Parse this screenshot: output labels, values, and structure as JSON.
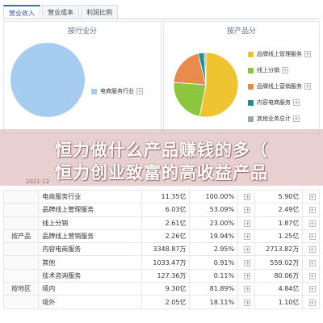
{
  "tabs": [
    {
      "label": "营业收入",
      "active": true
    },
    {
      "label": "营业成本",
      "active": false
    },
    {
      "label": "利润比例",
      "active": false
    }
  ],
  "left_panel": {
    "title": "按行业分",
    "legend": [
      {
        "label": "电商服务行业",
        "color": "#a6cdf0"
      }
    ]
  },
  "right_panel": {
    "title": "按产品分",
    "legend": [
      {
        "label": "品牌线上管理服务",
        "color": "#f0c330"
      },
      {
        "label": "线上分销",
        "color": "#8cc63f"
      },
      {
        "label": "品牌线上营销服务",
        "color": "#e98b4a"
      },
      {
        "label": "内容电商服务",
        "color": "#1e8f8f"
      },
      {
        "label": "其他业务总计",
        "color": "#9aa7b5"
      }
    ]
  },
  "chart_data": [
    {
      "type": "pie",
      "title": "按行业分",
      "labels": [
        "电商服务行业"
      ],
      "values": [
        100
      ],
      "colors": [
        "#a6cdf0"
      ]
    },
    {
      "type": "pie",
      "title": "按产品分",
      "labels": [
        "品牌线上管理服务",
        "线上分销",
        "品牌线上营销服务",
        "内容电商服务",
        "其他业务总计"
      ],
      "values": [
        53.09,
        23.0,
        19.94,
        2.95,
        0.91
      ],
      "colors": [
        "#f0c330",
        "#8cc63f",
        "#e98b4a",
        "#1e8f8f",
        "#9aa7b5"
      ]
    }
  ],
  "banner": {
    "line1": "恒力做什么产品赚钱的多（",
    "line2": "恒力创业致富的高收益产品",
    "date_peek": "2021-12"
  },
  "table": {
    "rows": [
      {
        "group": "",
        "name": "电商服务行业",
        "revenue": "11.35亿",
        "ratio": "100.00%",
        "cost": "5.90亿"
      },
      {
        "group": "",
        "name": "品牌线上管理服务",
        "revenue": "6.03亿",
        "ratio": "53.09%",
        "cost": "2.49亿"
      },
      {
        "group": "",
        "name": "线上分销",
        "revenue": "2.61亿",
        "ratio": "23.00%",
        "cost": "1.87亿"
      },
      {
        "group": "按产品",
        "name": "品牌线上营销服务",
        "revenue": "2.26亿",
        "ratio": "19.94%",
        "cost": "1.25亿"
      },
      {
        "group": "",
        "name": "内容电商服务",
        "revenue": "3348.87万",
        "ratio": "2.95%",
        "cost": "2713.82万"
      },
      {
        "group": "",
        "name": "其他",
        "revenue": "1033.47万",
        "ratio": "0.91%",
        "cost": "559.02万"
      },
      {
        "group": "",
        "name": "技术咨询服务",
        "revenue": "127.36万",
        "ratio": "0.11%",
        "cost": "80.06万"
      },
      {
        "group": "按地区",
        "name": "境内",
        "revenue": "9.30亿",
        "ratio": "81.89%",
        "cost": "4.84亿"
      },
      {
        "group": "",
        "name": "境外",
        "revenue": "2.05亿",
        "ratio": "18.11%",
        "cost": "1.10亿"
      }
    ]
  }
}
